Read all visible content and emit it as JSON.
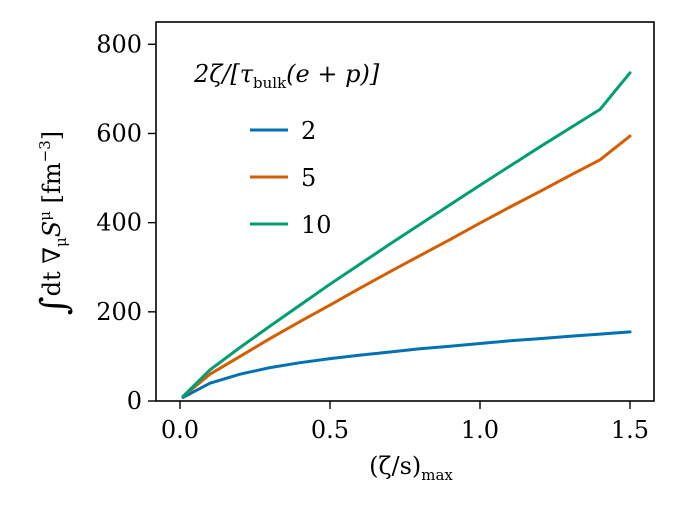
{
  "chart_data": {
    "type": "line",
    "xlabel": "(ζ/s)max",
    "ylabel": "∫dt ∇μSμ [fm⁻³]",
    "xlim": [
      -0.08,
      1.58
    ],
    "ylim": [
      0,
      850
    ],
    "xticks": [
      0.0,
      0.5,
      1.0,
      1.5
    ],
    "xtick_labels": [
      "0.0",
      "0.5",
      "1.0",
      "1.5"
    ],
    "yticks": [
      0,
      200,
      400,
      600,
      800
    ],
    "ytick_labels": [
      "0",
      "200",
      "400",
      "600",
      "800"
    ],
    "grid": false,
    "legend": {
      "title": "2ζ/[τbulk(e + p)]",
      "placement": "top-left"
    },
    "series": [
      {
        "name": "2",
        "color": "#0072b2",
        "x": [
          0.01,
          0.1,
          0.2,
          0.3,
          0.4,
          0.5,
          0.6,
          0.7,
          0.8,
          0.9,
          1.0,
          1.1,
          1.2,
          1.3,
          1.4,
          1.5
        ],
        "y": [
          8,
          40,
          60,
          75,
          86,
          95,
          103,
          110,
          117,
          123,
          129,
          135,
          140,
          145,
          150,
          155
        ]
      },
      {
        "name": "5",
        "color": "#d55e00",
        "x": [
          0.01,
          0.1,
          0.2,
          0.3,
          0.4,
          0.5,
          0.6,
          0.7,
          0.8,
          0.9,
          1.0,
          1.1,
          1.2,
          1.3,
          1.4,
          1.5
        ],
        "y": [
          10,
          60,
          100,
          140,
          178,
          215,
          253,
          290,
          326,
          362,
          399,
          435,
          470,
          506,
          541,
          594
        ]
      },
      {
        "name": "10",
        "color": "#009e73",
        "x": [
          0.01,
          0.1,
          0.2,
          0.3,
          0.4,
          0.5,
          0.6,
          0.7,
          0.8,
          0.9,
          1.0,
          1.1,
          1.2,
          1.3,
          1.4,
          1.5
        ],
        "y": [
          10,
          70,
          120,
          168,
          215,
          262,
          307,
          352,
          396,
          440,
          484,
          527,
          570,
          612,
          654,
          736
        ]
      }
    ]
  }
}
